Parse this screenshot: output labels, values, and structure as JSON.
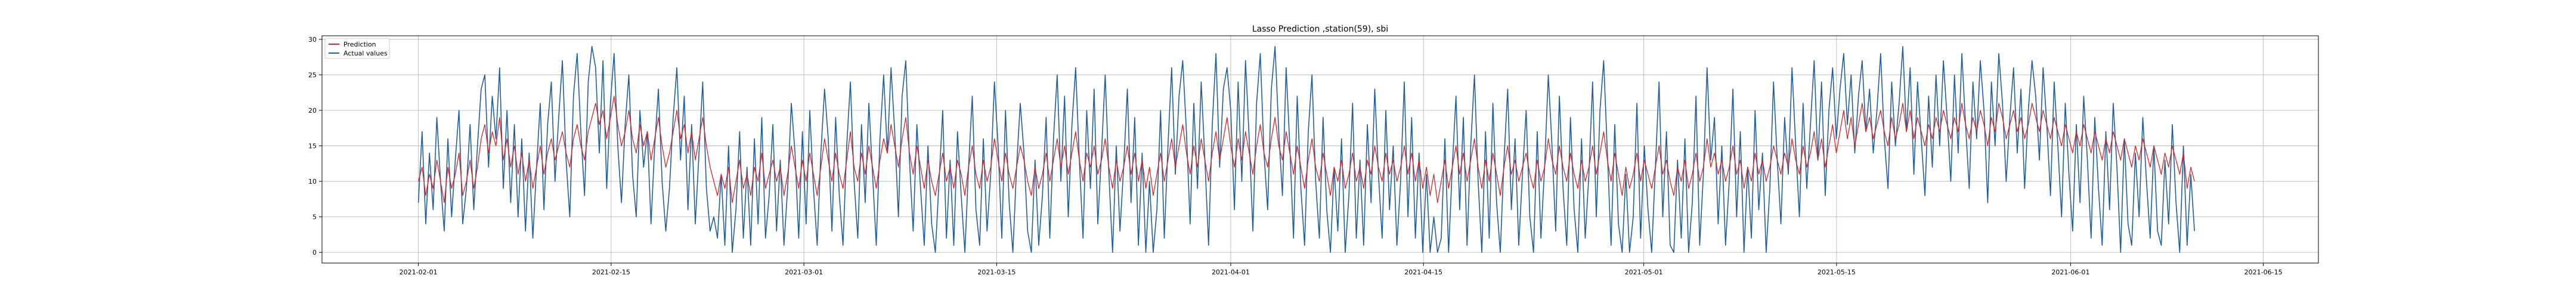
{
  "chart_data": {
    "type": "line",
    "title": "Lasso Prediction ,station(59), sbi",
    "xlabel": "",
    "ylabel": "",
    "x_range": [
      "2021-01-25",
      "2021-06-19"
    ],
    "ylim": [
      -1.5,
      30.5
    ],
    "x_tick_labels": [
      "2021-02-01",
      "2021-02-15",
      "2021-03-01",
      "2021-03-15",
      "2021-04-01",
      "2021-04-15",
      "2021-05-01",
      "2021-05-15",
      "2021-06-01",
      "2021-06-15"
    ],
    "y_tick_labels": [
      "0",
      "5",
      "10",
      "15",
      "20",
      "25",
      "30"
    ],
    "grid": true,
    "legend_position": "top-left",
    "x_start": "2021-02-01",
    "x_end": "2021-06-10",
    "sample_step_hours": 6,
    "series": [
      {
        "name": "Prediction",
        "color": "#d62728",
        "values": [
          10,
          12,
          8,
          11,
          9,
          13,
          10,
          7,
          12,
          9,
          11,
          14,
          8,
          10,
          13,
          9,
          12,
          16,
          18,
          14,
          17,
          15,
          19,
          13,
          16,
          12,
          15,
          11,
          14,
          10,
          13,
          9,
          12,
          15,
          11,
          14,
          16,
          13,
          15,
          17,
          14,
          12,
          16,
          18,
          15,
          13,
          17,
          19,
          21,
          18,
          20,
          16,
          19,
          22,
          18,
          15,
          17,
          20,
          16,
          14,
          18,
          15,
          17,
          13,
          16,
          19,
          15,
          12,
          14,
          17,
          20,
          16,
          18,
          14,
          17,
          13,
          16,
          19,
          15,
          12,
          10,
          8,
          11,
          9,
          12,
          7,
          10,
          13,
          9,
          11,
          8,
          12,
          10,
          14,
          9,
          11,
          13,
          10,
          12,
          8,
          11,
          15,
          12,
          9,
          13,
          10,
          14,
          11,
          8,
          12,
          16,
          13,
          10,
          14,
          11,
          9,
          13,
          17,
          12,
          10,
          14,
          11,
          15,
          12,
          9,
          13,
          16,
          14,
          18,
          15,
          12,
          16,
          19,
          14,
          11,
          15,
          12,
          9,
          13,
          10,
          8,
          11,
          14,
          10,
          12,
          9,
          13,
          11,
          8,
          12,
          15,
          11,
          9,
          13,
          10,
          12,
          16,
          13,
          10,
          14,
          11,
          9,
          12,
          15,
          13,
          10,
          8,
          12,
          9,
          11,
          14,
          10,
          13,
          16,
          12,
          15,
          11,
          14,
          17,
          13,
          10,
          14,
          12,
          15,
          11,
          13,
          16,
          12,
          9,
          13,
          10,
          12,
          15,
          11,
          14,
          10,
          13,
          9,
          12,
          8,
          11,
          14,
          10,
          13,
          16,
          12,
          15,
          18,
          14,
          11,
          15,
          12,
          16,
          13,
          10,
          14,
          17,
          13,
          16,
          19,
          15,
          12,
          16,
          13,
          17,
          14,
          11,
          15,
          18,
          14,
          12,
          16,
          19,
          15,
          13,
          17,
          14,
          11,
          15,
          12,
          9,
          13,
          16,
          12,
          10,
          14,
          11,
          8,
          12,
          10,
          13,
          9,
          11,
          14,
          10,
          12,
          9,
          13,
          11,
          15,
          12,
          10,
          14,
          11,
          13,
          10,
          12,
          15,
          11,
          14,
          10,
          13,
          9,
          12,
          8,
          11,
          7,
          10,
          13,
          9,
          12,
          15,
          11,
          14,
          10,
          13,
          16,
          12,
          9,
          13,
          10,
          14,
          11,
          8,
          12,
          15,
          11,
          13,
          10,
          12,
          14,
          11,
          9,
          13,
          10,
          12,
          16,
          13,
          11,
          15,
          12,
          10,
          14,
          11,
          9,
          13,
          10,
          12,
          15,
          11,
          14,
          17,
          13,
          10,
          14,
          11,
          8,
          12,
          9,
          11,
          14,
          10,
          13,
          11,
          9,
          12,
          15,
          11,
          13,
          10,
          8,
          12,
          10,
          13,
          9,
          11,
          14,
          10,
          12,
          16,
          12,
          14,
          11,
          13,
          10,
          12,
          15,
          11,
          13,
          9,
          12,
          10,
          14,
          11,
          13,
          10,
          12,
          15,
          13,
          11,
          14,
          12,
          16,
          13,
          11,
          15,
          12,
          14,
          17,
          13,
          16,
          12,
          15,
          18,
          14,
          17,
          20,
          16,
          19,
          15,
          18,
          21,
          17,
          19,
          16,
          18,
          20,
          17,
          15,
          19,
          16,
          18,
          21,
          17,
          20,
          16,
          19,
          17,
          15,
          18,
          16,
          19,
          17,
          20,
          18,
          16,
          19,
          17,
          21,
          18,
          16,
          19,
          17,
          20,
          18,
          15,
          19,
          17,
          21,
          19,
          16,
          18,
          20,
          17,
          19,
          16,
          18,
          21,
          19,
          17,
          20,
          18,
          16,
          19,
          17,
          15,
          18,
          16,
          14,
          17,
          15,
          18,
          16,
          14,
          17,
          15,
          13,
          16,
          14,
          17,
          15,
          13,
          16,
          14,
          12,
          15,
          13,
          16,
          14,
          12,
          15,
          13,
          11,
          14,
          12,
          15,
          13,
          11,
          14,
          9,
          12,
          10
        ]
      },
      {
        "name": "Actual values",
        "color": "#1f5f9e",
        "values": [
          7,
          17,
          4,
          14,
          6,
          19,
          10,
          3,
          16,
          5,
          13,
          20,
          4,
          9,
          18,
          6,
          15,
          23,
          25,
          12,
          22,
          16,
          26,
          9,
          20,
          7,
          18,
          5,
          16,
          3,
          14,
          2,
          12,
          21,
          6,
          18,
          24,
          10,
          19,
          27,
          13,
          5,
          22,
          28,
          17,
          8,
          24,
          29,
          26,
          14,
          27,
          9,
          21,
          28,
          15,
          7,
          18,
          25,
          11,
          5,
          20,
          12,
          17,
          4,
          15,
          23,
          10,
          3,
          9,
          19,
          26,
          13,
          22,
          6,
          18,
          4,
          14,
          24,
          9,
          3,
          5,
          2,
          11,
          1,
          15,
          0,
          6,
          17,
          2,
          12,
          1,
          16,
          4,
          19,
          2,
          8,
          18,
          3,
          13,
          1,
          9,
          21,
          14,
          2,
          17,
          4,
          20,
          9,
          1,
          14,
          23,
          16,
          3,
          19,
          8,
          1,
          15,
          24,
          10,
          2,
          18,
          7,
          21,
          11,
          1,
          16,
          25,
          14,
          26,
          17,
          5,
          22,
          27,
          13,
          3,
          18,
          9,
          1,
          15,
          4,
          0,
          10,
          20,
          2,
          13,
          1,
          17,
          8,
          0,
          12,
          22,
          6,
          1,
          16,
          3,
          11,
          24,
          15,
          2,
          20,
          7,
          0,
          12,
          21,
          14,
          3,
          0,
          13,
          1,
          8,
          19,
          2,
          16,
          25,
          10,
          22,
          5,
          18,
          26,
          13,
          2,
          20,
          9,
          23,
          4,
          14,
          25,
          11,
          0,
          15,
          3,
          12,
          23,
          7,
          19,
          1,
          14,
          0,
          10,
          0,
          6,
          20,
          2,
          15,
          26,
          11,
          22,
          27,
          17,
          4,
          21,
          9,
          24,
          13,
          1,
          18,
          28,
          12,
          23,
          26,
          20,
          6,
          24,
          10,
          27,
          16,
          3,
          21,
          28,
          14,
          6,
          23,
          29,
          17,
          8,
          26,
          15,
          2,
          22,
          9,
          1,
          17,
          25,
          10,
          2,
          19,
          6,
          0,
          12,
          3,
          16,
          0,
          8,
          21,
          2,
          13,
          1,
          18,
          7,
          23,
          11,
          2,
          20,
          6,
          15,
          1,
          10,
          24,
          5,
          19,
          2,
          14,
          0,
          11,
          0,
          5,
          0,
          2,
          16,
          0,
          12,
          22,
          6,
          19,
          1,
          15,
          25,
          10,
          0,
          17,
          2,
          21,
          7,
          0,
          13,
          23,
          6,
          16,
          1,
          11,
          20,
          5,
          0,
          17,
          2,
          12,
          25,
          15,
          3,
          22,
          9,
          1,
          19,
          6,
          0,
          16,
          2,
          11,
          24,
          5,
          20,
          27,
          14,
          1,
          18,
          4,
          0,
          11,
          0,
          5,
          21,
          2,
          15,
          6,
          0,
          12,
          24,
          5,
          17,
          1,
          0,
          13,
          2,
          16,
          0,
          7,
          22,
          1,
          11,
          26,
          13,
          19,
          4,
          15,
          1,
          10,
          23,
          5,
          17,
          0,
          12,
          2,
          20,
          6,
          14,
          0,
          9,
          24,
          13,
          4,
          19,
          11,
          26,
          15,
          5,
          21,
          9,
          18,
          27,
          13,
          24,
          8,
          20,
          26,
          16,
          23,
          28,
          18,
          25,
          14,
          22,
          27,
          17,
          23,
          14,
          20,
          28,
          16,
          9,
          24,
          15,
          21,
          29,
          17,
          26,
          11,
          24,
          16,
          8,
          22,
          12,
          25,
          15,
          27,
          19,
          10,
          25,
          14,
          28,
          18,
          9,
          24,
          16,
          27,
          20,
          7,
          24,
          15,
          28,
          21,
          10,
          19,
          26,
          14,
          23,
          9,
          20,
          27,
          22,
          13,
          26,
          18,
          8,
          24,
          15,
          5,
          21,
          11,
          3,
          18,
          7,
          22,
          13,
          2,
          19,
          9,
          1,
          17,
          6,
          21,
          12,
          0,
          16,
          4,
          1,
          14,
          5,
          19,
          10,
          2,
          15,
          3,
          1,
          13,
          4,
          18,
          7,
          0,
          15,
          1,
          11,
          3
        ]
      }
    ]
  }
}
